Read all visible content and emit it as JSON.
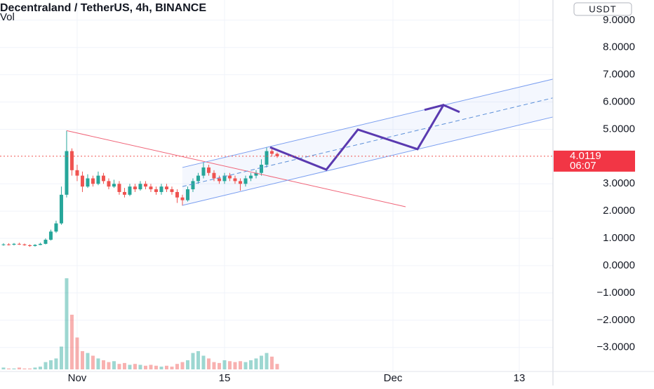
{
  "chart_data": {
    "type": "candlestick",
    "title": "Decentraland / TetherUS, 4h, BINANCE",
    "volume_label": "Vol",
    "currency": "USDT",
    "last_price": {
      "value": 4.0119,
      "label": "4.0119"
    },
    "countdown": "06:07",
    "xlim": [
      -7.33,
      45.2
    ],
    "xticks": [
      {
        "value": 0,
        "label": "Nov"
      },
      {
        "value": 14,
        "label": "15"
      },
      {
        "value": 30,
        "label": "Dec"
      },
      {
        "value": 42,
        "label": "13"
      }
    ],
    "ylim": [
      -3.88,
      9.74
    ],
    "yticks": [
      {
        "value": 9,
        "label": "9.0000"
      },
      {
        "value": 8,
        "label": "8.0000"
      },
      {
        "value": 7,
        "label": "7.0000"
      },
      {
        "value": 6,
        "label": "6.0000"
      },
      {
        "value": 5,
        "label": "5.0000"
      },
      {
        "value": 3,
        "label": "3.0000"
      },
      {
        "value": 2,
        "label": "2.0000"
      },
      {
        "value": 1,
        "label": "1.0000"
      },
      {
        "value": 0,
        "label": "0.0000"
      },
      {
        "value": -1,
        "label": "−1.0000"
      },
      {
        "value": -2,
        "label": "−2.0000"
      },
      {
        "value": -3,
        "label": "−3.0000"
      }
    ],
    "grid": true,
    "up_color": "#26a69a",
    "down_color": "#ef5350",
    "x": [
      -7,
      -6.5,
      -6,
      -5.5,
      -5,
      -4.5,
      -4,
      -3.5,
      -3,
      -2.5,
      -2,
      -1.5,
      -1,
      -0.5,
      0,
      0.5,
      1,
      1.5,
      2,
      2.5,
      3,
      3.5,
      4,
      4.5,
      5,
      5.5,
      6,
      6.5,
      7,
      7.5,
      8,
      8.5,
      9,
      9.5,
      10,
      10.5,
      11,
      11.5,
      12,
      12.5,
      13,
      13.5,
      14,
      14.5,
      15,
      15.5,
      16,
      16.5,
      17,
      17.5,
      18,
      18.5,
      19
    ],
    "open": [
      0.76,
      0.78,
      0.77,
      0.8,
      0.78,
      0.75,
      0.72,
      0.76,
      0.8,
      0.95,
      1.25,
      1.55,
      2.6,
      4.2,
      3.5,
      3.3,
      2.9,
      3.2,
      3.0,
      3.3,
      3.1,
      2.9,
      3.0,
      2.7,
      2.6,
      2.9,
      2.8,
      3.0,
      2.9,
      2.8,
      2.7,
      2.9,
      2.8,
      2.7,
      2.5,
      2.4,
      2.8,
      3.1,
      3.3,
      3.6,
      3.4,
      3.2,
      3.1,
      3.3,
      3.2,
      3.1,
      3.0,
      3.2,
      3.3,
      3.4,
      3.7,
      4.2,
      4.1
    ],
    "high": [
      0.82,
      0.82,
      0.83,
      0.84,
      0.81,
      0.78,
      0.79,
      0.84,
      1.0,
      1.32,
      1.65,
      2.9,
      4.95,
      4.3,
      3.7,
      3.45,
      3.35,
      3.3,
      3.45,
      3.4,
      3.2,
      3.15,
      3.1,
      2.85,
      3.0,
      3.0,
      3.1,
      3.1,
      3.0,
      2.9,
      3.0,
      3.0,
      2.9,
      2.8,
      2.6,
      2.9,
      3.2,
      3.4,
      3.8,
      3.7,
      3.5,
      3.3,
      3.4,
      3.4,
      3.3,
      3.2,
      3.3,
      3.4,
      3.5,
      3.9,
      4.35,
      4.3,
      4.15
    ],
    "low": [
      0.73,
      0.74,
      0.74,
      0.76,
      0.73,
      0.69,
      0.7,
      0.75,
      0.78,
      0.92,
      1.2,
      1.5,
      2.5,
      3.3,
      3.1,
      2.7,
      2.85,
      2.9,
      2.95,
      3.0,
      2.8,
      2.85,
      2.6,
      2.5,
      2.55,
      2.7,
      2.75,
      2.8,
      2.7,
      2.6,
      2.6,
      2.7,
      2.6,
      2.3,
      2.2,
      2.35,
      2.7,
      3.0,
      3.2,
      3.3,
      3.1,
      3.0,
      3.0,
      3.1,
      3.0,
      2.75,
      2.9,
      3.1,
      3.2,
      3.3,
      3.6,
      4.0,
      3.95
    ],
    "close": [
      0.78,
      0.77,
      0.8,
      0.78,
      0.75,
      0.72,
      0.76,
      0.8,
      0.95,
      1.25,
      1.55,
      2.6,
      4.2,
      3.5,
      3.3,
      2.9,
      3.2,
      3.0,
      3.3,
      3.1,
      2.9,
      3.0,
      2.7,
      2.6,
      2.9,
      2.8,
      3.0,
      2.9,
      2.8,
      2.7,
      2.9,
      2.8,
      2.7,
      2.5,
      2.4,
      2.8,
      3.1,
      3.3,
      3.6,
      3.4,
      3.2,
      3.1,
      3.3,
      3.2,
      3.1,
      3.0,
      3.2,
      3.3,
      3.4,
      3.7,
      4.2,
      4.1,
      4.0119
    ],
    "volume": [
      2,
      1,
      1,
      2,
      1,
      1,
      2,
      3,
      8,
      10,
      12,
      25,
      100,
      60,
      35,
      20,
      18,
      15,
      12,
      10,
      8,
      9,
      6,
      7,
      5,
      6,
      5,
      4,
      5,
      4,
      3,
      4,
      3,
      6,
      8,
      10,
      18,
      20,
      15,
      12,
      8,
      7,
      10,
      9,
      8,
      9,
      8,
      10,
      12,
      15,
      18,
      14,
      6
    ],
    "drawings": [
      {
        "color": "#f06478",
        "x": [
          -1,
          31.2
        ],
        "y": [
          4.95,
          2.16
        ]
      },
      {
        "color": "#7a9ef0",
        "x": [
          10,
          45.2
        ],
        "y": [
          3.6,
          6.84
        ]
      },
      {
        "color": "#7a9ef0",
        "x": [
          10,
          45.2
        ],
        "y": [
          2.21,
          5.45
        ]
      },
      {
        "color": "#5b8fd8",
        "dashed": true,
        "x": [
          10,
          45.2
        ],
        "y": [
          2.9,
          6.15
        ]
      },
      {
        "color": "#5a3ab0",
        "width": 3,
        "x": [
          18.33,
          23.67,
          26.67,
          32.33,
          34.8,
          36.33
        ],
        "y": [
          4.34,
          3.52,
          4.99,
          4.27,
          5.89,
          5.63
        ]
      },
      {
        "color": "#5a3ab0",
        "width": 3,
        "x": [
          33.0,
          34.8
        ],
        "y": [
          5.71,
          5.89
        ]
      }
    ]
  }
}
